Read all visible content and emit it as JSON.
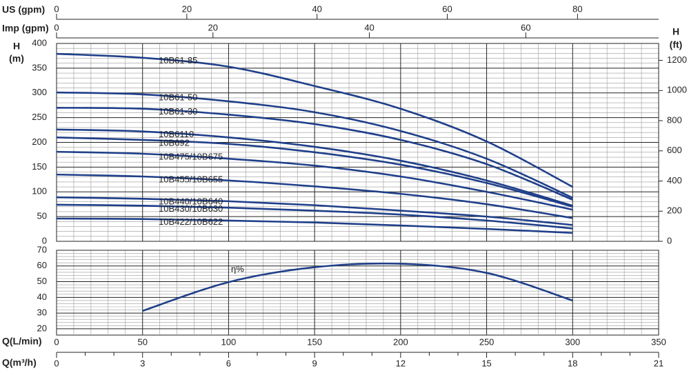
{
  "chart_data": [
    {
      "type": "line",
      "ylabel": [
        "H",
        "(m)"
      ],
      "y2label": [
        "H",
        "(ft)"
      ],
      "x": [
        0,
        50,
        100,
        150,
        200,
        250,
        300
      ],
      "xlim": [
        0,
        350
      ],
      "xticks": [
        0,
        50,
        100,
        150,
        200,
        250,
        300,
        350
      ],
      "ylim": [
        0,
        400
      ],
      "yticks": [
        0,
        50,
        100,
        150,
        200,
        250,
        300,
        350,
        400
      ],
      "y2lim": [
        0,
        1312.3
      ],
      "y2ticks": [
        0,
        200,
        400,
        600,
        800,
        1000,
        1200
      ],
      "top_axes": [
        {
          "label": "US (gpm)",
          "lim": [
            0,
            92.46
          ],
          "ticks": [
            0,
            20,
            40,
            60,
            80
          ]
        },
        {
          "label": "Imp (gpm)",
          "lim": [
            0,
            76.99
          ],
          "ticks": [
            0,
            20,
            40,
            60
          ]
        }
      ],
      "grid": true,
      "series": [
        {
          "name": "10B61-85",
          "color": "#1f3f8a",
          "values": [
            379,
            371,
            353,
            314,
            268,
            202,
            110
          ]
        },
        {
          "name": "10B61-50",
          "color": "#1f3f8a",
          "values": [
            301,
            297,
            283,
            261,
            223,
            167,
            88
          ]
        },
        {
          "name": "10B61-30",
          "color": "#1f3f8a",
          "values": [
            270,
            268,
            256,
            237,
            205,
            156,
            84
          ]
        },
        {
          "name": "10B6110",
          "color": "#1f3f8a",
          "values": [
            226,
            222,
            210,
            191,
            163,
            123,
            72
          ]
        },
        {
          "name": "10B692",
          "color": "#1f3f8a",
          "values": [
            210,
            205,
            197,
            180,
            155,
            118,
            70
          ]
        },
        {
          "name": "10B475/10B675",
          "color": "#1f3f8a",
          "values": [
            181,
            177,
            167,
            153,
            131,
            100,
            64
          ]
        },
        {
          "name": "10B455/10B655",
          "color": "#1f3f8a",
          "values": [
            135,
            131,
            123,
            111,
            96,
            75,
            47
          ]
        },
        {
          "name": "10B440/10B640",
          "color": "#1f3f8a",
          "values": [
            89,
            86,
            81,
            73,
            62,
            50,
            33
          ]
        },
        {
          "name": "10B430/10B630",
          "color": "#1f3f8a",
          "values": [
            74,
            72,
            68,
            62,
            54,
            42,
            26
          ]
        },
        {
          "name": "10B422/10B622",
          "color": "#1f3f8a",
          "values": [
            46,
            45,
            42,
            38,
            32,
            25,
            17
          ]
        }
      ]
    },
    {
      "type": "line",
      "xlabel": "Q(L/min)",
      "x": [
        50,
        100,
        150,
        200,
        250,
        300
      ],
      "xlim": [
        0,
        350
      ],
      "xticks": [
        0,
        50,
        100,
        150,
        200,
        250,
        300,
        350
      ],
      "ylim": [
        16,
        70
      ],
      "yticks": [
        20,
        30,
        40,
        50,
        60,
        70
      ],
      "x2label": "Q(m³/h)",
      "x2lim": [
        0,
        21
      ],
      "x2ticks": [
        0,
        3,
        6,
        9,
        12,
        15,
        18,
        21
      ],
      "grid": true,
      "series": [
        {
          "name": "η%",
          "color": "#1f3f8a",
          "values": [
            31.4,
            49.7,
            59.2,
            61.4,
            55.6,
            38
          ]
        }
      ]
    }
  ]
}
